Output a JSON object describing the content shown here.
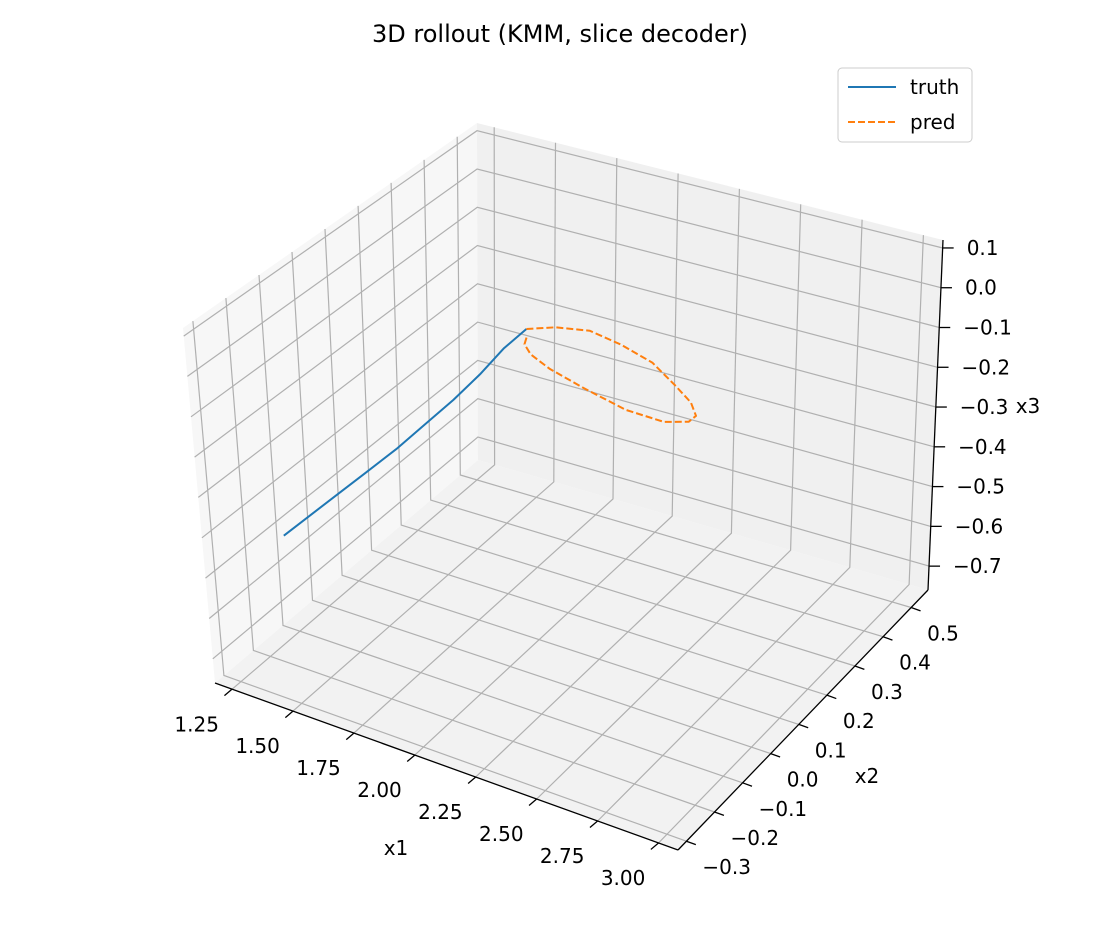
{
  "chart_data": {
    "type": "line",
    "projection": "3d",
    "title": "3D rollout (KMM, slice decoder)",
    "xlabel": "x1",
    "ylabel": "x2",
    "zlabel": "x3",
    "xlim": [
      1.18,
      3.08
    ],
    "ylim": [
      -0.33,
      0.56
    ],
    "zlim": [
      -0.76,
      0.12
    ],
    "xticks": [
      "1.25",
      "1.50",
      "1.75",
      "2.00",
      "2.25",
      "2.50",
      "2.75",
      "3.00"
    ],
    "yticks": [
      "−0.3",
      "−0.2",
      "−0.1",
      "0.0",
      "0.1",
      "0.2",
      "0.3",
      "0.4",
      "0.5"
    ],
    "zticks": [
      "−0.7",
      "−0.6",
      "−0.5",
      "−0.4",
      "−0.3",
      "−0.2",
      "−0.1",
      "0.0",
      "0.1"
    ],
    "xtick_values": [
      1.25,
      1.5,
      1.75,
      2.0,
      2.25,
      2.5,
      2.75,
      3.0
    ],
    "ytick_values": [
      -0.3,
      -0.2,
      -0.1,
      0.0,
      0.1,
      0.2,
      0.3,
      0.4,
      0.5
    ],
    "ztick_values": [
      -0.7,
      -0.6,
      -0.5,
      -0.4,
      -0.3,
      -0.2,
      -0.1,
      0.0,
      0.1
    ],
    "grid": true,
    "legend_position": "top-right",
    "series": [
      {
        "name": "truth",
        "color": "#1f77b4",
        "style": "solid",
        "points": [
          [
            1.36,
            -0.21,
            -0.43
          ],
          [
            1.44,
            -0.18,
            -0.38
          ],
          [
            1.52,
            -0.15,
            -0.33
          ],
          [
            1.6,
            -0.12,
            -0.28
          ],
          [
            1.68,
            -0.08,
            -0.23
          ],
          [
            1.75,
            -0.04,
            -0.18
          ],
          [
            1.82,
            0.0,
            -0.13
          ],
          [
            1.88,
            0.04,
            -0.08
          ],
          [
            1.93,
            0.08,
            -0.03
          ],
          [
            1.97,
            0.12,
            0.0
          ]
        ]
      },
      {
        "name": "pred",
        "color": "#ff7f0e",
        "style": "dashed",
        "points": [
          [
            1.97,
            0.12,
            0.0
          ],
          [
            2.05,
            0.15,
            0.0
          ],
          [
            2.15,
            0.18,
            -0.01
          ],
          [
            2.25,
            0.2,
            -0.04
          ],
          [
            2.35,
            0.22,
            -0.08
          ],
          [
            2.43,
            0.23,
            -0.13
          ],
          [
            2.48,
            0.24,
            -0.17
          ],
          [
            2.5,
            0.24,
            -0.2
          ],
          [
            2.47,
            0.24,
            -0.22
          ],
          [
            2.38,
            0.23,
            -0.23
          ],
          [
            2.25,
            0.21,
            -0.21
          ],
          [
            2.12,
            0.18,
            -0.16
          ],
          [
            2.02,
            0.15,
            -0.11
          ],
          [
            1.97,
            0.13,
            -0.07
          ],
          [
            1.96,
            0.12,
            -0.04
          ],
          [
            1.97,
            0.12,
            -0.02
          ]
        ]
      }
    ]
  }
}
